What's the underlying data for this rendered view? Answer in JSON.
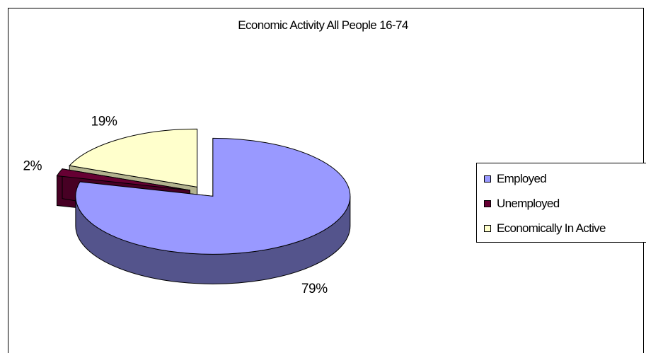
{
  "chart_data": {
    "type": "pie",
    "title": "Economic Activity All People 16-74",
    "categories": [
      "Employed",
      "Unemployed",
      "Economically In Active"
    ],
    "values": [
      79,
      2,
      19
    ],
    "data_labels": [
      "79%",
      "2%",
      "19%"
    ],
    "colors": {
      "Employed": "#9999ff",
      "Unemployed": "#660033",
      "Economically In Active": "#ffffcc"
    },
    "three_d": true,
    "exploded": true,
    "legend_position": "right"
  },
  "legend": {
    "items": [
      {
        "label": "Employed",
        "color": "#9999ff"
      },
      {
        "label": "Unemployed",
        "color": "#660033"
      },
      {
        "label": "Economically In Active",
        "color": "#ffffcc"
      }
    ]
  }
}
